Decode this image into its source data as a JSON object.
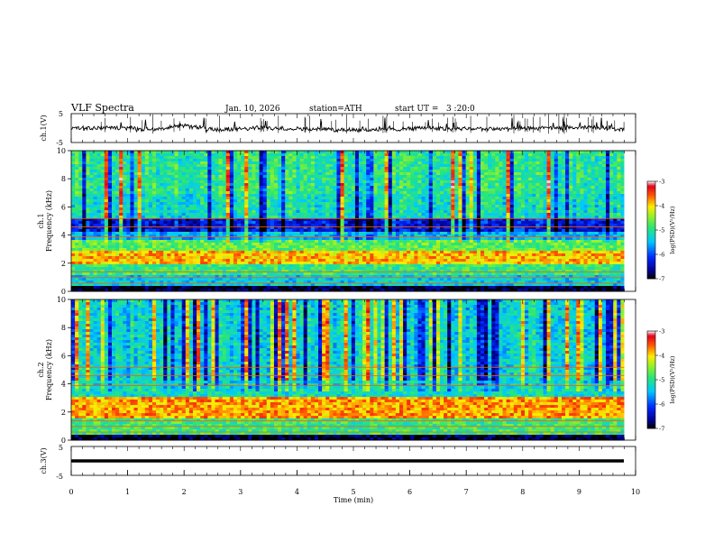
{
  "header": {
    "title": "VLF Spectra",
    "date": "Jan. 10, 2026",
    "station": "station=ATH",
    "start": "start UT =   3 :20:0"
  },
  "chart_data": [
    {
      "type": "line",
      "name": "ch1-waveform",
      "ylabel": "ch.1(V)",
      "ylim": [
        -5,
        5
      ],
      "yticks": [
        "5",
        "-5"
      ],
      "xlim": [
        0,
        10
      ],
      "series_color": "#000000",
      "description_values": {
        "baseline": 0,
        "x_end": 9.8
      }
    },
    {
      "type": "heatmap",
      "name": "ch1-spectrogram",
      "ylabel": "ch.1",
      "ylabel2": "Frequency (kHz)",
      "ylim": [
        0,
        10
      ],
      "yticks": [
        "0",
        "2",
        "4",
        "6",
        "8",
        "10"
      ],
      "xlim": [
        0,
        9.8
      ],
      "colorbar": {
        "label": "log(PSD)(V²/Hz)",
        "range": [
          -7,
          -3
        ],
        "ticks": [
          "-3",
          "-4",
          "-5",
          "-6",
          "-7"
        ]
      },
      "bands": [
        {
          "f": [
            0,
            0.3
          ],
          "level": -6.9
        },
        {
          "f": [
            0.3,
            1.2
          ],
          "level": -5.4
        },
        {
          "f": [
            1.2,
            2.0
          ],
          "level": -4.9
        },
        {
          "f": [
            2.0,
            2.8
          ],
          "level": -3.9
        },
        {
          "f": [
            2.8,
            3.6
          ],
          "level": -4.7
        },
        {
          "f": [
            3.6,
            4.2
          ],
          "level": -5.5
        },
        {
          "f": [
            4.2,
            5.2
          ],
          "level": -6.3
        },
        {
          "f": [
            5.2,
            7.0
          ],
          "level": -5.2
        },
        {
          "f": [
            7.0,
            10.0
          ],
          "level": -5.0
        }
      ]
    },
    {
      "type": "heatmap",
      "name": "ch2-spectrogram",
      "ylabel": "ch.2",
      "ylabel2": "Frequency (kHz)",
      "ylim": [
        0,
        10
      ],
      "yticks": [
        "0",
        "2",
        "4",
        "6",
        "8",
        "10"
      ],
      "xlim": [
        0,
        9.8
      ],
      "colorbar": {
        "label": "log(PSD)(V²/Hz)",
        "range": [
          -7,
          -3
        ],
        "ticks": [
          "-3",
          "-4",
          "-5",
          "-6",
          "-7"
        ]
      },
      "bands": [
        {
          "f": [
            0,
            0.3
          ],
          "level": -6.9
        },
        {
          "f": [
            0.3,
            1.6
          ],
          "level": -4.9
        },
        {
          "f": [
            1.6,
            3.0
          ],
          "level": -3.8
        },
        {
          "f": [
            3.0,
            3.8
          ],
          "level": -5.2
        },
        {
          "f": [
            3.8,
            5.5
          ],
          "level": -5.3
        },
        {
          "f": [
            5.5,
            10.0
          ],
          "level": -5.3
        }
      ]
    },
    {
      "type": "line",
      "name": "ch3-waveform",
      "ylabel": "ch.3(V)",
      "ylim": [
        -5,
        5
      ],
      "yticks": [
        "5",
        "-5"
      ],
      "xlim": [
        0,
        10
      ],
      "xlabel": "Time (min)",
      "xticks": [
        "0",
        "1",
        "2",
        "3",
        "4",
        "5",
        "6",
        "7",
        "8",
        "9",
        "10"
      ],
      "series_color": "#000000",
      "description_values": {
        "baseline": 0,
        "x_end": 9.8
      }
    }
  ]
}
